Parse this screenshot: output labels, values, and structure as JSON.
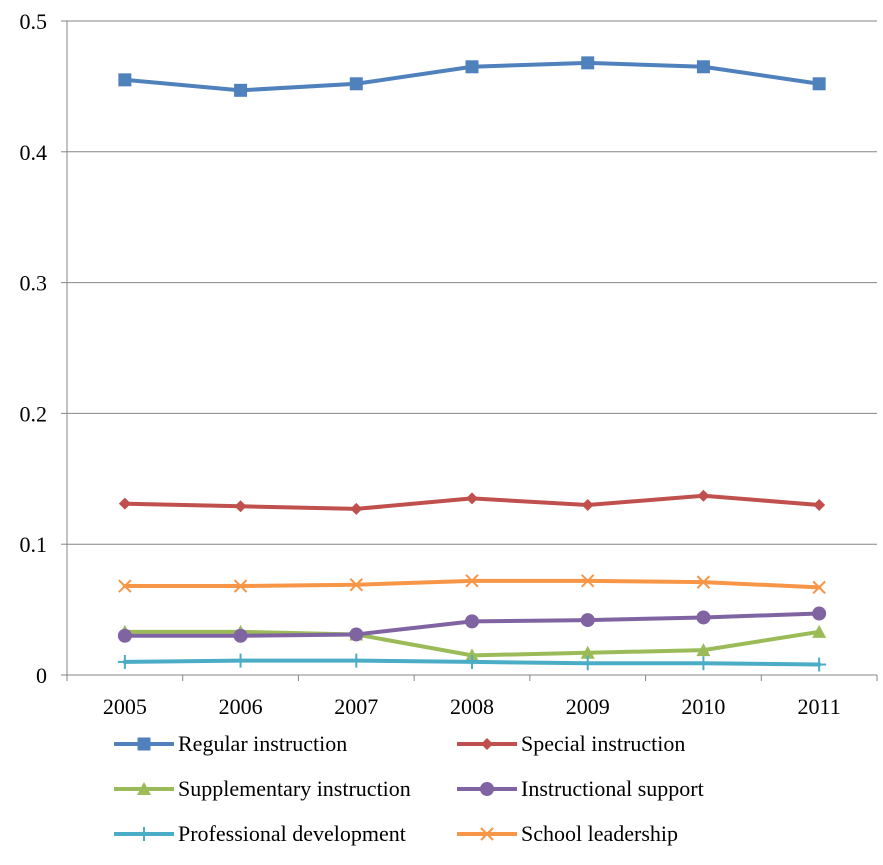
{
  "chart_data": {
    "type": "line",
    "x": [
      "2005",
      "2006",
      "2007",
      "2008",
      "2009",
      "2010",
      "2011"
    ],
    "ylim": [
      0,
      0.5
    ],
    "yticks": [
      "0",
      "0.1",
      "0.2",
      "0.3",
      "0.4",
      "0.5"
    ],
    "grid": "horizontal",
    "legend_position": "bottom",
    "series": [
      {
        "name": "Regular instruction",
        "color": "#4F81BD",
        "marker": "square",
        "values": [
          0.455,
          0.447,
          0.452,
          0.465,
          0.468,
          0.465,
          0.452
        ]
      },
      {
        "name": "Special instruction",
        "color": "#C0504D",
        "marker": "diamond",
        "values": [
          0.131,
          0.129,
          0.127,
          0.135,
          0.13,
          0.137,
          0.13
        ]
      },
      {
        "name": "Supplementary instruction",
        "color": "#9BBB59",
        "marker": "triangle",
        "values": [
          0.033,
          0.033,
          0.031,
          0.015,
          0.017,
          0.019,
          0.033
        ]
      },
      {
        "name": "Instructional support",
        "color": "#8064A2",
        "marker": "circle",
        "values": [
          0.03,
          0.03,
          0.031,
          0.041,
          0.042,
          0.044,
          0.047
        ]
      },
      {
        "name": "Professional development",
        "color": "#4BACC6",
        "marker": "plus",
        "values": [
          0.01,
          0.011,
          0.011,
          0.01,
          0.009,
          0.009,
          0.008
        ]
      },
      {
        "name": "School leadership",
        "color": "#F79646",
        "marker": "x",
        "values": [
          0.068,
          0.068,
          0.069,
          0.072,
          0.072,
          0.071,
          0.067
        ]
      }
    ]
  }
}
